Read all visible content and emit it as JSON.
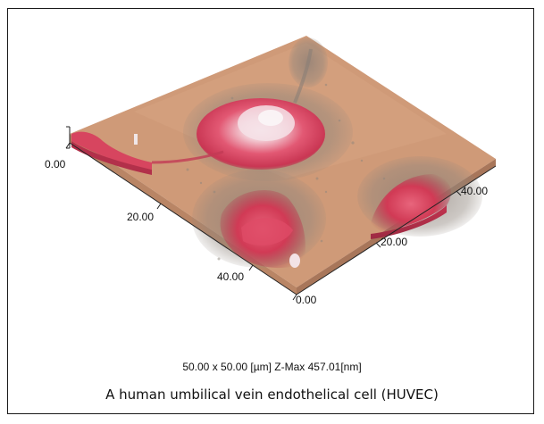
{
  "image": {
    "subject": "AFM 3D surface topography",
    "surface_color": "#cf9a78",
    "cell_colors": [
      "#d13a55",
      "#e86a80",
      "#f2d6dc",
      "#8a8378"
    ]
  },
  "axes": {
    "z_tick": "0.00",
    "left_edge_ticks": [
      "20.00",
      "40.00"
    ],
    "corner_tick": "0.00",
    "right_edge_ticks": [
      "20.00",
      "40.00"
    ]
  },
  "caption": {
    "dimensions": "50.00 x 50.00 [µm]  Z-Max 457.01[nm]",
    "title": "A human umbilical vein endothelical cell (HUVEC)"
  }
}
